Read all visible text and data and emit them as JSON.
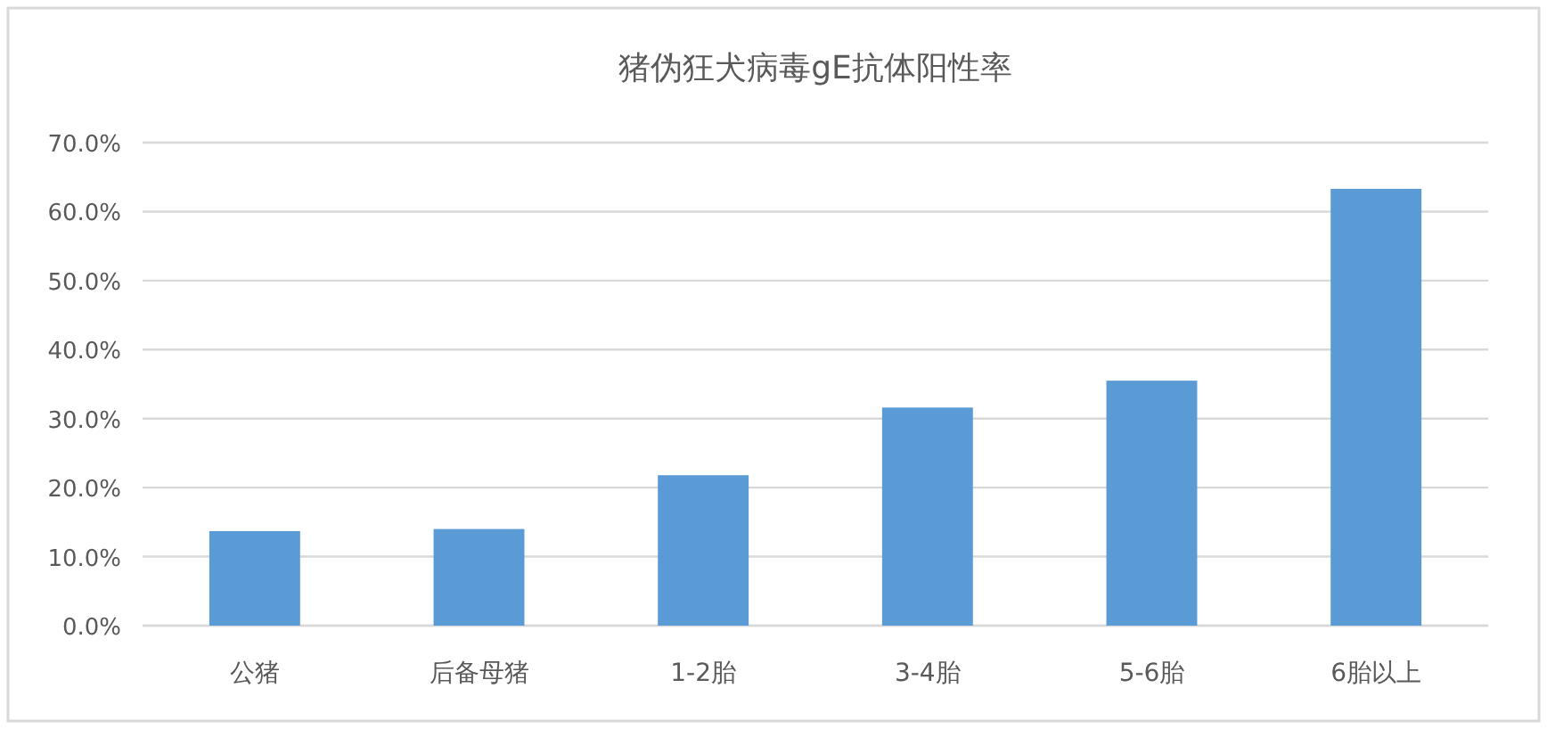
{
  "chart_data": {
    "type": "bar",
    "title": "猪伪狂犬病毒gE抗体阳性率",
    "categories": [
      "公猪",
      "后备母猪",
      "1-2胎",
      "3-4胎",
      "5-6胎",
      "6胎以上"
    ],
    "values": [
      13.7,
      14.0,
      21.8,
      31.6,
      35.5,
      63.3
    ],
    "color": "#5b9bd5",
    "ylim": [
      0,
      70
    ],
    "yticks": [
      {
        "value": 0,
        "label": "0.0%"
      },
      {
        "value": 10,
        "label": "10.0%"
      },
      {
        "value": 20,
        "label": "20.0%"
      },
      {
        "value": 30,
        "label": "30.0%"
      },
      {
        "value": 40,
        "label": "40.0%"
      },
      {
        "value": 50,
        "label": "50.0%"
      },
      {
        "value": 60,
        "label": "60.0%"
      },
      {
        "value": 70,
        "label": "70.0%"
      }
    ],
    "grid": "y"
  }
}
